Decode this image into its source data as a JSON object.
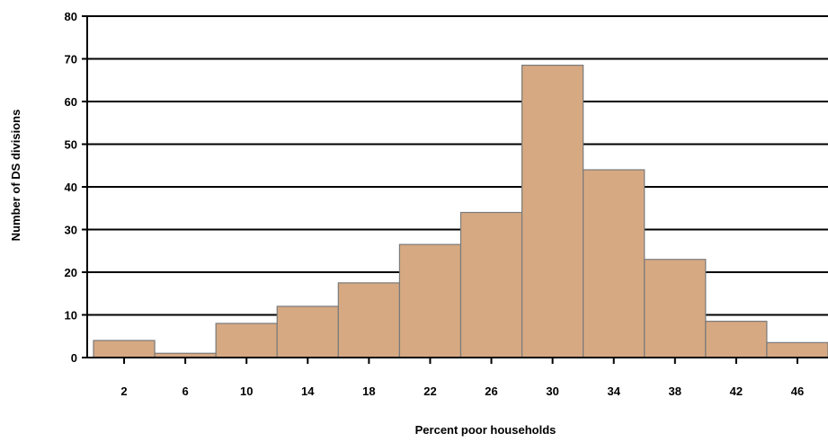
{
  "chart_data": {
    "type": "bar",
    "title": "",
    "xlabel": "Percent poor households",
    "ylabel": "Number of DS divisions",
    "categories": [
      "2",
      "6",
      "10",
      "14",
      "18",
      "22",
      "26",
      "30",
      "34",
      "38",
      "42",
      "46"
    ],
    "values": [
      4,
      1,
      8,
      12,
      17.5,
      26.5,
      34,
      68.5,
      44,
      23,
      8.5,
      3.5
    ],
    "ylim": [
      0,
      80
    ],
    "yticks": [
      "0",
      "10",
      "20",
      "30",
      "40",
      "50",
      "60",
      "70",
      "80"
    ],
    "grid": true,
    "legend": "none",
    "bar_color": "#d6a983",
    "bar_edge_color": "#7a7a7a"
  }
}
